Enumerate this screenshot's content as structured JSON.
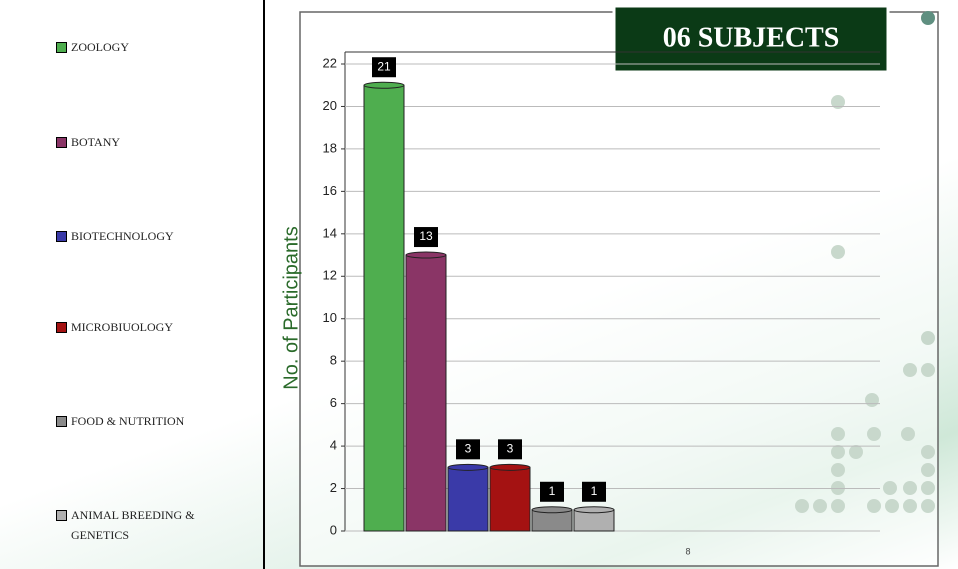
{
  "chart_data": {
    "type": "bar",
    "title": "06 SUBJECTS",
    "y_label": "No. of Participants",
    "footer": "8",
    "categories": [
      "ZOOLOGY",
      "BOTANY",
      "BIOTECHNOLOGY",
      "MICROBIUOLOGY",
      "FOOD & NUTRITION",
      "ANIMAL BREEDING & GENETICS"
    ],
    "values": [
      21,
      13,
      3,
      3,
      1,
      1
    ],
    "colors": [
      "#4fae4f",
      "#8a3566",
      "#3a3aa8",
      "#a41212",
      "#8a8a8a",
      "#b0b0b0"
    ],
    "ylim": [
      0,
      22
    ],
    "yticks": [
      0,
      2,
      4,
      6,
      8,
      10,
      12,
      14,
      16,
      18,
      20,
      22
    ],
    "grid": true,
    "legend": "left"
  }
}
